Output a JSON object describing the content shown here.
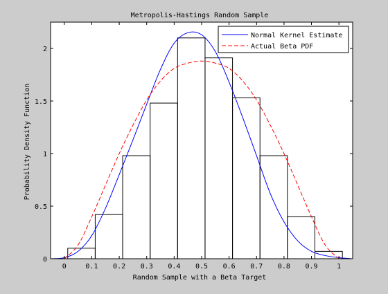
{
  "colors": {
    "figure_background": "#cccccc",
    "axes_background": "#ffffff",
    "histogram_edge": "#000000",
    "kernel_line": "#0000ff",
    "beta_line": "#ff0000"
  },
  "chart_data": {
    "type": "histogram-with-lines",
    "title": "Metropolis-Hastings Random Sample",
    "xlabel": "Random Sample with a Beta Target",
    "ylabel": "Probability Density Function",
    "xlim": [
      -0.05,
      1.05
    ],
    "ylim": [
      0,
      2.25
    ],
    "xticks": [
      0,
      0.1,
      0.2,
      0.3,
      0.4,
      0.5,
      0.6,
      0.7,
      0.8,
      0.9,
      1
    ],
    "xtick_labels": [
      "0",
      "0.1",
      "0.2",
      "0.3",
      "0.4",
      "0.5",
      "0.6",
      "0.7",
      "0.8",
      "0.9",
      "1"
    ],
    "yticks": [
      0,
      0.5,
      1,
      1.5,
      2
    ],
    "ytick_labels": [
      "0",
      "0.5",
      "1",
      "1.5",
      "2"
    ],
    "grid": false,
    "legend_placement": "top-right",
    "histogram": {
      "bin_edges": [
        0.0125,
        0.1125,
        0.2125,
        0.3125,
        0.4125,
        0.5125,
        0.6125,
        0.7125,
        0.8125,
        0.9125,
        1.0125
      ],
      "densities": [
        0.1,
        0.42,
        0.98,
        1.48,
        2.1,
        1.91,
        1.53,
        0.98,
        0.4,
        0.07
      ]
    },
    "series": [
      {
        "name": "Normal Kernel Estimate",
        "style": "solid",
        "color": "#0000ff",
        "x": [
          -0.05,
          0.0,
          0.05,
          0.1,
          0.15,
          0.2,
          0.25,
          0.3,
          0.35,
          0.4,
          0.45,
          0.5,
          0.55,
          0.6,
          0.65,
          0.7,
          0.75,
          0.8,
          0.85,
          0.9,
          0.95,
          1.0,
          1.05
        ],
        "y": [
          0.0,
          0.01,
          0.07,
          0.22,
          0.48,
          0.8,
          1.13,
          1.47,
          1.8,
          2.05,
          2.15,
          2.13,
          1.97,
          1.68,
          1.34,
          0.98,
          0.62,
          0.35,
          0.17,
          0.07,
          0.03,
          0.01,
          0.0
        ]
      },
      {
        "name": "Actual Beta PDF",
        "style": "dashed",
        "color": "#ff0000",
        "x": [
          0.0,
          0.05,
          0.1,
          0.15,
          0.2,
          0.25,
          0.3,
          0.35,
          0.4,
          0.45,
          0.5,
          0.55,
          0.6,
          0.65,
          0.7,
          0.75,
          0.8,
          0.85,
          0.9,
          0.95,
          1.0
        ],
        "y": [
          0.0,
          0.13,
          0.4,
          0.7,
          1.0,
          1.27,
          1.51,
          1.69,
          1.81,
          1.86,
          1.88,
          1.86,
          1.81,
          1.69,
          1.51,
          1.27,
          1.0,
          0.7,
          0.4,
          0.13,
          0.0
        ]
      }
    ]
  }
}
